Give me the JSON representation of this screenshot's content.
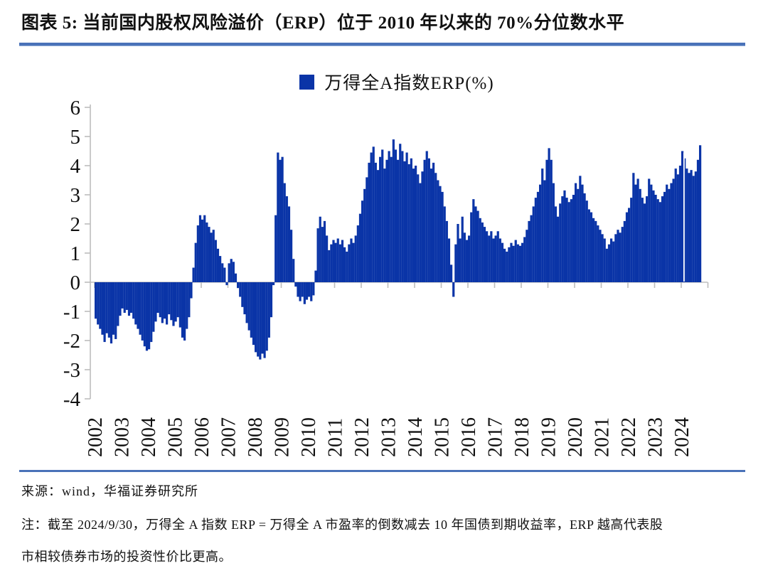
{
  "figure": {
    "title": "图表 5:  当前国内股权风险溢价（ERP）位于 2010 年以来的 70%分位数水平",
    "source_label": "来源：wind，华福证券研究所",
    "note_line1": "注：截至 2024/9/30，万得全 A 指数 ERP = 万得全 A 市盈率的倒数减去 10 年国债到期收益率，ERP 越高代表股",
    "note_line2": "市相较债券市场的投资性价比更高。"
  },
  "chart_data": {
    "type": "area",
    "legend": "万得全A指数ERP(%)",
    "series_name": "万得全A指数ERP(%)",
    "series_color": "#0a34a7",
    "axis_color": "#bdbdbd",
    "ylim": [
      -4,
      6
    ],
    "y_ticks": [
      6,
      5,
      4,
      3,
      2,
      1,
      0,
      -1,
      -2,
      -3,
      -4
    ],
    "x_tick_years": [
      2002,
      2003,
      2004,
      2005,
      2006,
      2007,
      2008,
      2009,
      2010,
      2011,
      2012,
      2013,
      2014,
      2015,
      2016,
      2017,
      2018,
      2019,
      2020,
      2021,
      2022,
      2023,
      2024
    ],
    "x_start_year": 2002.0,
    "x_step_years": 0.0833333,
    "x_end_label": "2024/9/30",
    "baseline": 0,
    "gap_marker_year": 2024.08,
    "values": [
      -1.25,
      -1.45,
      -1.6,
      -1.8,
      -2.05,
      -1.75,
      -1.9,
      -2.1,
      -1.8,
      -1.95,
      -1.5,
      -1.15,
      -0.9,
      -1.05,
      -0.95,
      -1.15,
      -1.05,
      -1.25,
      -1.45,
      -1.6,
      -1.8,
      -2.0,
      -2.2,
      -2.35,
      -2.3,
      -2.05,
      -1.7,
      -1.35,
      -1.05,
      -1.2,
      -1.4,
      -1.25,
      -1.45,
      -1.1,
      -1.3,
      -1.5,
      -1.35,
      -1.2,
      -1.55,
      -1.9,
      -2.0,
      -1.6,
      -1.2,
      -0.55,
      0.5,
      1.35,
      1.95,
      2.3,
      2.15,
      2.3,
      2.05,
      1.9,
      1.7,
      1.8,
      1.45,
      1.15,
      0.9,
      0.65,
      0.5,
      -0.1,
      0.65,
      0.8,
      0.7,
      0.3,
      -0.2,
      -0.5,
      -0.85,
      -1.1,
      -1.4,
      -1.65,
      -1.9,
      -2.15,
      -2.4,
      -2.55,
      -2.65,
      -2.45,
      -2.6,
      -2.35,
      -1.9,
      -1.2,
      -0.1,
      2.3,
      4.45,
      4.2,
      4.3,
      3.4,
      2.95,
      2.6,
      1.8,
      0.8,
      -0.15,
      -0.5,
      -0.65,
      -0.5,
      -0.75,
      -0.6,
      -0.5,
      -0.65,
      -0.45,
      0.4,
      1.85,
      2.25,
      1.9,
      2.1,
      1.6,
      1.1,
      1.3,
      1.45,
      1.35,
      1.5,
      1.3,
      1.45,
      1.2,
      1.05,
      1.3,
      1.5,
      1.35,
      1.6,
      1.95,
      2.35,
      2.8,
      3.2,
      3.6,
      4.1,
      4.45,
      4.65,
      4.1,
      3.85,
      4.3,
      4.55,
      3.9,
      4.2,
      4.5,
      4.3,
      4.9,
      4.55,
      4.2,
      4.75,
      4.5,
      4.15,
      4.45,
      4.05,
      4.25,
      3.9,
      4.0,
      3.7,
      3.4,
      3.8,
      4.2,
      4.5,
      4.25,
      3.9,
      4.1,
      3.75,
      3.5,
      3.3,
      3.1,
      2.6,
      2.1,
      1.5,
      0.6,
      -0.5,
      1.3,
      2.0,
      1.5,
      2.25,
      1.7,
      1.45,
      1.6,
      2.4,
      2.85,
      2.6,
      2.45,
      2.2,
      2.05,
      1.9,
      1.75,
      1.6,
      1.75,
      1.5,
      1.6,
      1.75,
      1.5,
      1.35,
      1.15,
      1.05,
      1.2,
      1.35,
      1.25,
      1.45,
      1.3,
      1.25,
      1.35,
      1.55,
      1.8,
      2.1,
      2.3,
      2.6,
      2.9,
      3.1,
      3.35,
      3.9,
      3.5,
      4.2,
      4.6,
      4.2,
      3.4,
      2.6,
      2.25,
      2.7,
      2.95,
      3.15,
      2.9,
      2.75,
      2.85,
      3.0,
      3.4,
      3.2,
      3.65,
      3.35,
      3.05,
      2.8,
      2.5,
      2.4,
      2.2,
      2.1,
      1.95,
      1.8,
      1.65,
      1.5,
      1.15,
      1.3,
      1.5,
      1.4,
      1.65,
      1.8,
      1.7,
      1.9,
      2.1,
      2.4,
      2.55,
      2.9,
      3.75,
      3.35,
      3.55,
      3.2,
      2.9,
      2.7,
      2.95,
      3.55,
      3.35,
      3.15,
      3.0,
      2.85,
      2.75,
      2.95,
      3.1,
      3.35,
      3.2,
      3.4,
      3.55,
      3.9,
      3.7,
      4.0,
      4.5,
      4.25,
      3.9,
      3.75,
      3.85,
      3.65,
      3.8,
      4.2,
      4.7
    ]
  }
}
